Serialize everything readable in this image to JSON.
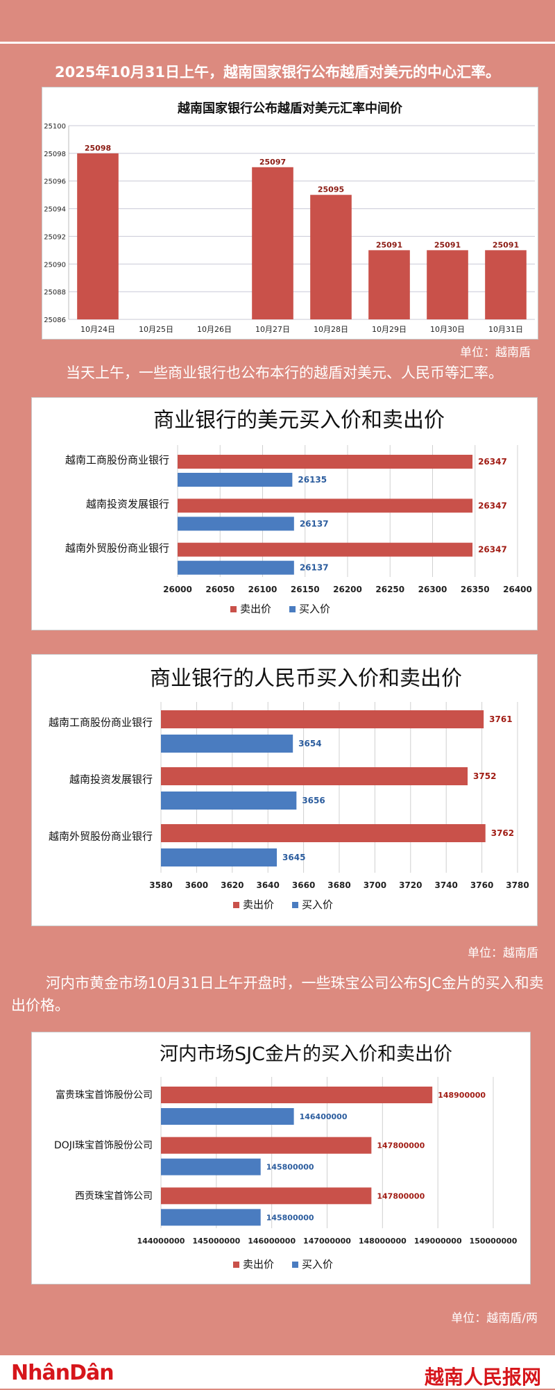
{
  "texts": {
    "intro": "2025年10月31日上午，越南国家银行公布越盾对美元的中心汇率。",
    "unit1": "单位：越南盾",
    "para2": "当天上午，一些商业银行也公布本行的越盾对美元、人民币等汇率。",
    "unit2": "单位：越南盾",
    "para3": "河内市黄金市场10月31日上午开盘时，一些珠宝公司公布SJC金片的买入和卖出价格。",
    "unit3": "单位：越南盾/两"
  },
  "footer": {
    "logo": "NhânDân",
    "site": "越南人民报网"
  },
  "colors": {
    "red": "#c9514a",
    "blue": "#4a7cc0",
    "grid": "#c8c8d6",
    "background": "#dc8a7f"
  },
  "chart_data": [
    {
      "type": "bar",
      "title": "越南国家银行公布越盾对美元汇率中间价",
      "categories": [
        "10月24日",
        "10月25日",
        "10月26日",
        "10月27日",
        "10月28日",
        "10月29日",
        "10月30日",
        "10月31日"
      ],
      "values": [
        25098,
        null,
        null,
        25097,
        25095,
        25091,
        25091,
        25091
      ],
      "ylim": [
        25086,
        25100
      ],
      "yticks": [
        25086,
        25088,
        25090,
        25092,
        25094,
        25096,
        25098,
        25100
      ],
      "grid": true
    },
    {
      "type": "bar",
      "orientation": "horizontal",
      "title": "商业银行的美元买入价和卖出价",
      "categories": [
        "越南工商股份商业银行",
        "越南投资发展银行",
        "越南外贸股份商业银行"
      ],
      "series": [
        {
          "name": "卖出价",
          "values": [
            26347,
            26347,
            26347
          ]
        },
        {
          "name": "买入价",
          "values": [
            26135,
            26137,
            26137
          ]
        }
      ],
      "xlim": [
        26000,
        26400
      ],
      "xticks": [
        26000,
        26050,
        26100,
        26150,
        26200,
        26250,
        26300,
        26350,
        26400
      ],
      "legend": "bottom"
    },
    {
      "type": "bar",
      "orientation": "horizontal",
      "title": "商业银行的人民币买入价和卖出价",
      "categories": [
        "越南工商股份商业银行",
        "越南投资发展银行",
        "越南外贸股份商业银行"
      ],
      "series": [
        {
          "name": "卖出价",
          "values": [
            3761,
            3752,
            3762
          ]
        },
        {
          "name": "买入价",
          "values": [
            3654,
            3656,
            3645
          ]
        }
      ],
      "xlim": [
        3580,
        3780
      ],
      "xticks": [
        3580,
        3600,
        3620,
        3640,
        3660,
        3680,
        3700,
        3720,
        3740,
        3760,
        3780
      ],
      "legend": "bottom"
    },
    {
      "type": "bar",
      "orientation": "horizontal",
      "title": "河内市场SJC金片的买入价和卖出价",
      "categories": [
        "富贵珠宝首饰股份公司",
        "DOJI珠宝首饰股份公司",
        "西贡珠宝首饰公司"
      ],
      "series": [
        {
          "name": "卖出价",
          "values": [
            148900000,
            147800000,
            147800000
          ]
        },
        {
          "name": "买入价",
          "values": [
            146400000,
            145800000,
            145800000
          ]
        }
      ],
      "xlim": [
        144000000,
        150000000
      ],
      "xticks": [
        144000000,
        145000000,
        146000000,
        147000000,
        148000000,
        149000000,
        150000000
      ],
      "legend": "bottom"
    }
  ]
}
